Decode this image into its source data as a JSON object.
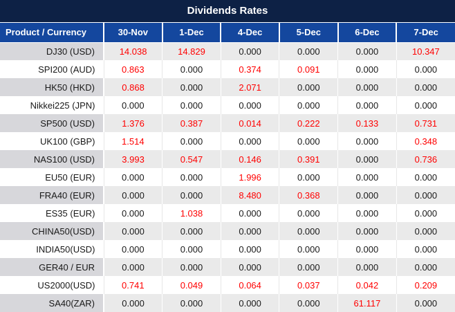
{
  "title": "Dividends Rates",
  "colors": {
    "title_bar_bg": "#0d2145",
    "header_bg": "#14479e",
    "row_stripe_product_bg": "#d7d7db",
    "row_stripe_values_bg": "#eaeaea",
    "row_white_bg": "#ffffff",
    "value_highlight": "#ff0000",
    "value_default": "#191919",
    "header_text": "#ffffff"
  },
  "table": {
    "product_header": "Product / Currency",
    "date_headers": [
      "30-Nov",
      "1-Dec",
      "4-Dec",
      "5-Dec",
      "6-Dec",
      "7-Dec"
    ],
    "rows": [
      {
        "product": "DJ30 (USD)",
        "cells": [
          {
            "v": "14.038",
            "red": true
          },
          {
            "v": "14.829",
            "red": true
          },
          {
            "v": "0.000",
            "red": false
          },
          {
            "v": "0.000",
            "red": false
          },
          {
            "v": "0.000",
            "red": false
          },
          {
            "v": "10.347",
            "red": true
          }
        ]
      },
      {
        "product": "SPI200 (AUD)",
        "cells": [
          {
            "v": "0.863",
            "red": true
          },
          {
            "v": "0.000",
            "red": false
          },
          {
            "v": "0.374",
            "red": true
          },
          {
            "v": "0.091",
            "red": true
          },
          {
            "v": "0.000",
            "red": false
          },
          {
            "v": "0.000",
            "red": false
          }
        ]
      },
      {
        "product": "HK50 (HKD)",
        "cells": [
          {
            "v": "0.868",
            "red": true
          },
          {
            "v": "0.000",
            "red": false
          },
          {
            "v": "2.071",
            "red": true
          },
          {
            "v": "0.000",
            "red": false
          },
          {
            "v": "0.000",
            "red": false
          },
          {
            "v": "0.000",
            "red": false
          }
        ]
      },
      {
        "product": "Nikkei225 (JPN)",
        "cells": [
          {
            "v": "0.000",
            "red": false
          },
          {
            "v": "0.000",
            "red": false
          },
          {
            "v": "0.000",
            "red": false
          },
          {
            "v": "0.000",
            "red": false
          },
          {
            "v": "0.000",
            "red": false
          },
          {
            "v": "0.000",
            "red": false
          }
        ]
      },
      {
        "product": "SP500 (USD)",
        "cells": [
          {
            "v": "1.376",
            "red": true
          },
          {
            "v": "0.387",
            "red": true
          },
          {
            "v": "0.014",
            "red": true
          },
          {
            "v": "0.222",
            "red": true
          },
          {
            "v": "0.133",
            "red": true
          },
          {
            "v": "0.731",
            "red": true
          }
        ]
      },
      {
        "product": "UK100 (GBP)",
        "cells": [
          {
            "v": "1.514",
            "red": true
          },
          {
            "v": "0.000",
            "red": false
          },
          {
            "v": "0.000",
            "red": false
          },
          {
            "v": "0.000",
            "red": false
          },
          {
            "v": "0.000",
            "red": false
          },
          {
            "v": "0.348",
            "red": true
          }
        ]
      },
      {
        "product": "NAS100 (USD)",
        "cells": [
          {
            "v": "3.993",
            "red": true
          },
          {
            "v": "0.547",
            "red": true
          },
          {
            "v": "0.146",
            "red": true
          },
          {
            "v": "0.391",
            "red": true
          },
          {
            "v": "0.000",
            "red": false
          },
          {
            "v": "0.736",
            "red": true
          }
        ]
      },
      {
        "product": "EU50 (EUR)",
        "cells": [
          {
            "v": "0.000",
            "red": false
          },
          {
            "v": "0.000",
            "red": false
          },
          {
            "v": "1.996",
            "red": true
          },
          {
            "v": "0.000",
            "red": false
          },
          {
            "v": "0.000",
            "red": false
          },
          {
            "v": "0.000",
            "red": false
          }
        ]
      },
      {
        "product": "FRA40 (EUR)",
        "cells": [
          {
            "v": "0.000",
            "red": false
          },
          {
            "v": "0.000",
            "red": false
          },
          {
            "v": "8.480",
            "red": true
          },
          {
            "v": "0.368",
            "red": true
          },
          {
            "v": "0.000",
            "red": false
          },
          {
            "v": "0.000",
            "red": false
          }
        ]
      },
      {
        "product": "ES35 (EUR)",
        "cells": [
          {
            "v": "0.000",
            "red": false
          },
          {
            "v": "1.038",
            "red": true
          },
          {
            "v": "0.000",
            "red": false
          },
          {
            "v": "0.000",
            "red": false
          },
          {
            "v": "0.000",
            "red": false
          },
          {
            "v": "0.000",
            "red": false
          }
        ]
      },
      {
        "product": "CHINA50(USD)",
        "cells": [
          {
            "v": "0.000",
            "red": false
          },
          {
            "v": "0.000",
            "red": false
          },
          {
            "v": "0.000",
            "red": false
          },
          {
            "v": "0.000",
            "red": false
          },
          {
            "v": "0.000",
            "red": false
          },
          {
            "v": "0.000",
            "red": false
          }
        ]
      },
      {
        "product": "INDIA50(USD)",
        "cells": [
          {
            "v": "0.000",
            "red": false
          },
          {
            "v": "0.000",
            "red": false
          },
          {
            "v": "0.000",
            "red": false
          },
          {
            "v": "0.000",
            "red": false
          },
          {
            "v": "0.000",
            "red": false
          },
          {
            "v": "0.000",
            "red": false
          }
        ]
      },
      {
        "product": "GER40 / EUR",
        "cells": [
          {
            "v": "0.000",
            "red": false
          },
          {
            "v": "0.000",
            "red": false
          },
          {
            "v": "0.000",
            "red": false
          },
          {
            "v": "0.000",
            "red": false
          },
          {
            "v": "0.000",
            "red": false
          },
          {
            "v": "0.000",
            "red": false
          }
        ]
      },
      {
        "product": "US2000(USD)",
        "cells": [
          {
            "v": "0.741",
            "red": true
          },
          {
            "v": "0.049",
            "red": true
          },
          {
            "v": "0.064",
            "red": true
          },
          {
            "v": "0.037",
            "red": true
          },
          {
            "v": "0.042",
            "red": true
          },
          {
            "v": "0.209",
            "red": true
          }
        ]
      },
      {
        "product": "SA40(ZAR)",
        "cells": [
          {
            "v": "0.000",
            "red": false
          },
          {
            "v": "0.000",
            "red": false
          },
          {
            "v": "0.000",
            "red": false
          },
          {
            "v": "0.000",
            "red": false
          },
          {
            "v": "61.117",
            "red": true
          },
          {
            "v": "0.000",
            "red": false
          }
        ]
      }
    ]
  }
}
